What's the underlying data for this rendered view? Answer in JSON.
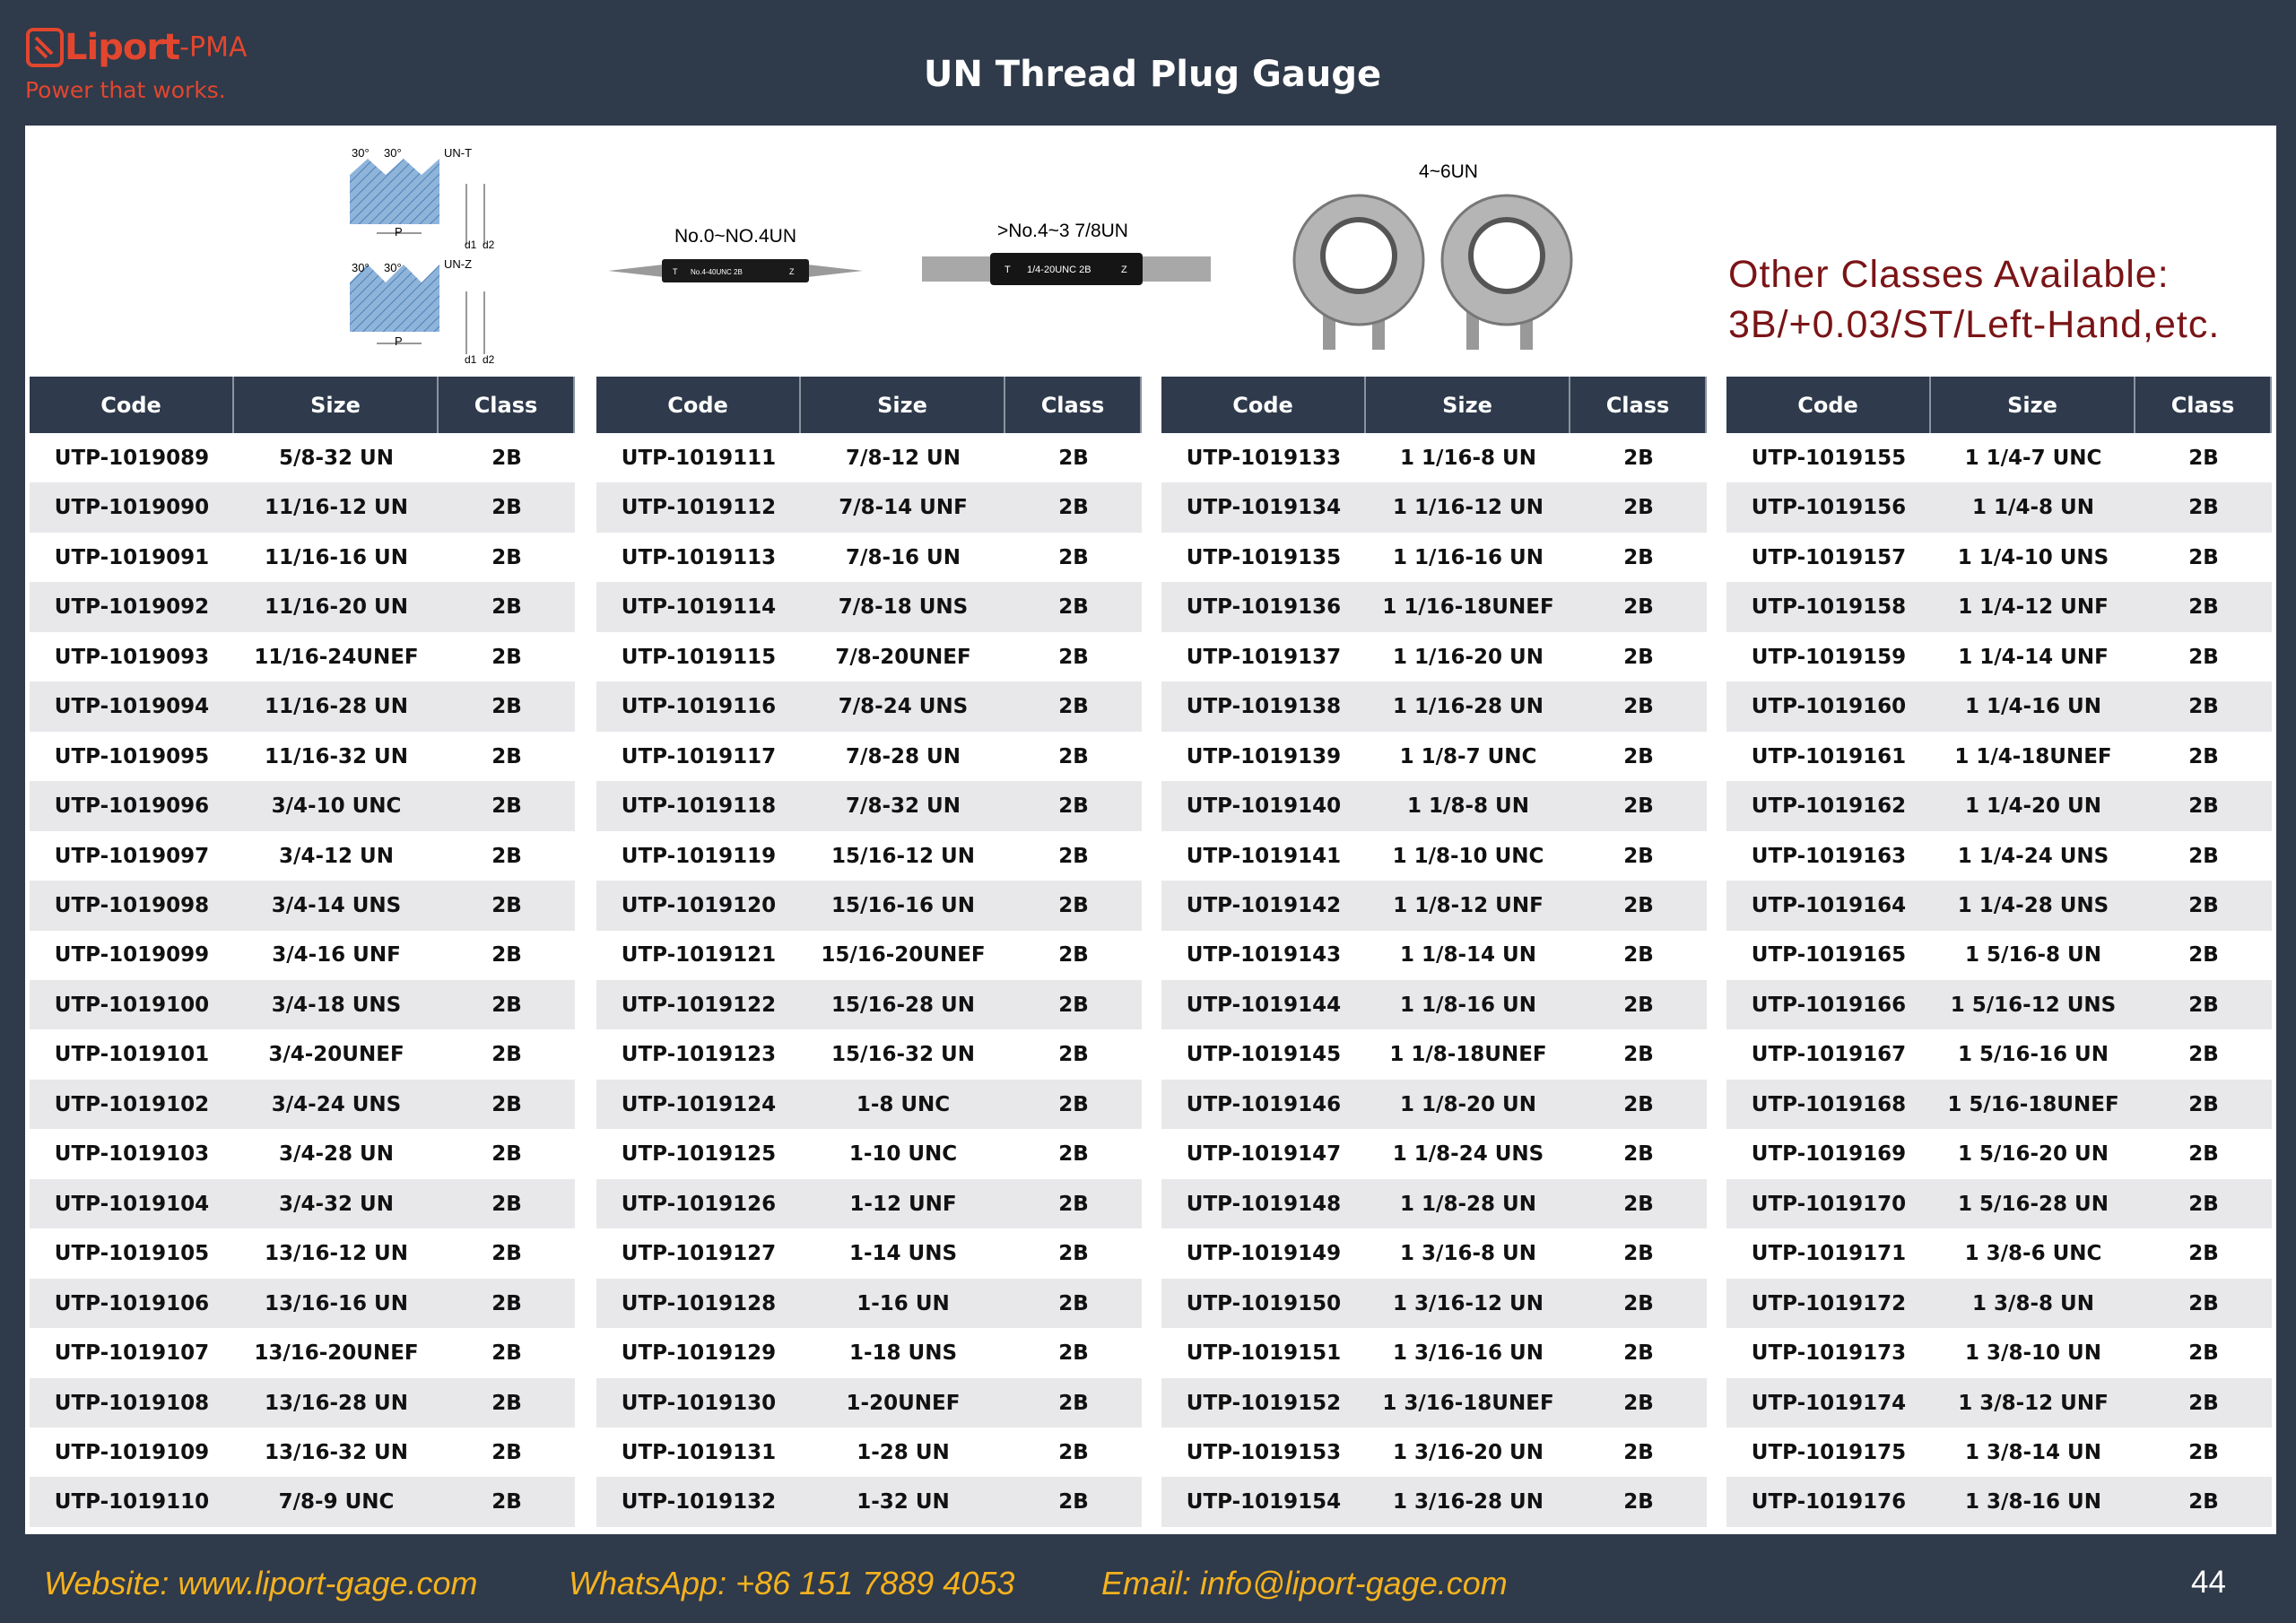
{
  "header": {
    "logo_name": "Liport",
    "logo_suffix": "-PMA",
    "tagline": "Power that works.",
    "title": "UN Thread Plug Gauge"
  },
  "illustrations": {
    "thread_profile_t": {
      "angles": [
        "30°",
        "30°"
      ],
      "label": "UN-T",
      "pitch": "P",
      "minor": "d1",
      "pitch_dia": "d2"
    },
    "thread_profile_z": {
      "angles": [
        "30°",
        "30°"
      ],
      "label": "UN-Z",
      "pitch": "P",
      "minor": "d1",
      "pitch_dia": "d2"
    },
    "small_gauge": {
      "label": "No.0~NO.4UN",
      "go": "T",
      "marking": "No.4-40UNC 2B",
      "nogo": "Z"
    },
    "medium_gauge": {
      "label": ">No.4~3 7/8UN",
      "go": "T",
      "marking": "1/4-20UNC 2B",
      "nogo": "Z"
    },
    "ring_gauge": {
      "label": "4~6UN"
    }
  },
  "notice": {
    "lines": [
      "Other Classes Available:",
      "3B/+0.03/ST/Left-Hand,etc."
    ]
  },
  "tables": [
    {
      "header": [
        "Code",
        "Size",
        "Class"
      ],
      "rows": [
        [
          "UTP-1019089",
          "5/8-32 UN",
          "2B"
        ],
        [
          "UTP-1019090",
          "11/16-12 UN",
          "2B"
        ],
        [
          "UTP-1019091",
          "11/16-16 UN",
          "2B"
        ],
        [
          "UTP-1019092",
          "11/16-20 UN",
          "2B"
        ],
        [
          "UTP-1019093",
          "11/16-24UNEF",
          "2B"
        ],
        [
          "UTP-1019094",
          "11/16-28 UN",
          "2B"
        ],
        [
          "UTP-1019095",
          "11/16-32 UN",
          "2B"
        ],
        [
          "UTP-1019096",
          "3/4-10 UNC",
          "2B"
        ],
        [
          "UTP-1019097",
          "3/4-12 UN",
          "2B"
        ],
        [
          "UTP-1019098",
          "3/4-14 UNS",
          "2B"
        ],
        [
          "UTP-1019099",
          "3/4-16 UNF",
          "2B"
        ],
        [
          "UTP-1019100",
          "3/4-18 UNS",
          "2B"
        ],
        [
          "UTP-1019101",
          "3/4-20UNEF",
          "2B"
        ],
        [
          "UTP-1019102",
          "3/4-24 UNS",
          "2B"
        ],
        [
          "UTP-1019103",
          "3/4-28 UN",
          "2B"
        ],
        [
          "UTP-1019104",
          "3/4-32 UN",
          "2B"
        ],
        [
          "UTP-1019105",
          "13/16-12 UN",
          "2B"
        ],
        [
          "UTP-1019106",
          "13/16-16 UN",
          "2B"
        ],
        [
          "UTP-1019107",
          "13/16-20UNEF",
          "2B"
        ],
        [
          "UTP-1019108",
          "13/16-28 UN",
          "2B"
        ],
        [
          "UTP-1019109",
          "13/16-32 UN",
          "2B"
        ],
        [
          "UTP-1019110",
          "7/8-9 UNC",
          "2B"
        ]
      ]
    },
    {
      "header": [
        "Code",
        "Size",
        "Class"
      ],
      "rows": [
        [
          "UTP-1019111",
          "7/8-12 UN",
          "2B"
        ],
        [
          "UTP-1019112",
          "7/8-14 UNF",
          "2B"
        ],
        [
          "UTP-1019113",
          "7/8-16 UN",
          "2B"
        ],
        [
          "UTP-1019114",
          "7/8-18 UNS",
          "2B"
        ],
        [
          "UTP-1019115",
          "7/8-20UNEF",
          "2B"
        ],
        [
          "UTP-1019116",
          "7/8-24 UNS",
          "2B"
        ],
        [
          "UTP-1019117",
          "7/8-28 UN",
          "2B"
        ],
        [
          "UTP-1019118",
          "7/8-32 UN",
          "2B"
        ],
        [
          "UTP-1019119",
          "15/16-12 UN",
          "2B"
        ],
        [
          "UTP-1019120",
          "15/16-16 UN",
          "2B"
        ],
        [
          "UTP-1019121",
          "15/16-20UNEF",
          "2B"
        ],
        [
          "UTP-1019122",
          "15/16-28 UN",
          "2B"
        ],
        [
          "UTP-1019123",
          "15/16-32 UN",
          "2B"
        ],
        [
          "UTP-1019124",
          "1-8 UNC",
          "2B"
        ],
        [
          "UTP-1019125",
          "1-10 UNC",
          "2B"
        ],
        [
          "UTP-1019126",
          "1-12 UNF",
          "2B"
        ],
        [
          "UTP-1019127",
          "1-14 UNS",
          "2B"
        ],
        [
          "UTP-1019128",
          "1-16 UN",
          "2B"
        ],
        [
          "UTP-1019129",
          "1-18 UNS",
          "2B"
        ],
        [
          "UTP-1019130",
          "1-20UNEF",
          "2B"
        ],
        [
          "UTP-1019131",
          "1-28 UN",
          "2B"
        ],
        [
          "UTP-1019132",
          "1-32 UN",
          "2B"
        ]
      ]
    },
    {
      "header": [
        "Code",
        "Size",
        "Class"
      ],
      "rows": [
        [
          "UTP-1019133",
          "1 1/16-8 UN",
          "2B"
        ],
        [
          "UTP-1019134",
          "1 1/16-12 UN",
          "2B"
        ],
        [
          "UTP-1019135",
          "1 1/16-16 UN",
          "2B"
        ],
        [
          "UTP-1019136",
          "1 1/16-18UNEF",
          "2B"
        ],
        [
          "UTP-1019137",
          "1 1/16-20 UN",
          "2B"
        ],
        [
          "UTP-1019138",
          "1 1/16-28 UN",
          "2B"
        ],
        [
          "UTP-1019139",
          "1 1/8-7 UNC",
          "2B"
        ],
        [
          "UTP-1019140",
          "1 1/8-8 UN",
          "2B"
        ],
        [
          "UTP-1019141",
          "1 1/8-10 UNC",
          "2B"
        ],
        [
          "UTP-1019142",
          "1 1/8-12 UNF",
          "2B"
        ],
        [
          "UTP-1019143",
          "1 1/8-14 UN",
          "2B"
        ],
        [
          "UTP-1019144",
          "1 1/8-16 UN",
          "2B"
        ],
        [
          "UTP-1019145",
          "1 1/8-18UNEF",
          "2B"
        ],
        [
          "UTP-1019146",
          "1 1/8-20 UN",
          "2B"
        ],
        [
          "UTP-1019147",
          "1 1/8-24 UNS",
          "2B"
        ],
        [
          "UTP-1019148",
          "1 1/8-28 UN",
          "2B"
        ],
        [
          "UTP-1019149",
          "1 3/16-8 UN",
          "2B"
        ],
        [
          "UTP-1019150",
          "1 3/16-12 UN",
          "2B"
        ],
        [
          "UTP-1019151",
          "1 3/16-16 UN",
          "2B"
        ],
        [
          "UTP-1019152",
          "1 3/16-18UNEF",
          "2B"
        ],
        [
          "UTP-1019153",
          "1 3/16-20 UN",
          "2B"
        ],
        [
          "UTP-1019154",
          "1 3/16-28 UN",
          "2B"
        ]
      ]
    },
    {
      "header": [
        "Code",
        "Size",
        "Class"
      ],
      "rows": [
        [
          "UTP-1019155",
          "1 1/4-7 UNC",
          "2B"
        ],
        [
          "UTP-1019156",
          "1 1/4-8 UN",
          "2B"
        ],
        [
          "UTP-1019157",
          "1 1/4-10 UNS",
          "2B"
        ],
        [
          "UTP-1019158",
          "1 1/4-12 UNF",
          "2B"
        ],
        [
          "UTP-1019159",
          "1 1/4-14 UNF",
          "2B"
        ],
        [
          "UTP-1019160",
          "1 1/4-16 UN",
          "2B"
        ],
        [
          "UTP-1019161",
          "1 1/4-18UNEF",
          "2B"
        ],
        [
          "UTP-1019162",
          "1 1/4-20 UN",
          "2B"
        ],
        [
          "UTP-1019163",
          "1 1/4-24 UNS",
          "2B"
        ],
        [
          "UTP-1019164",
          "1 1/4-28 UNS",
          "2B"
        ],
        [
          "UTP-1019165",
          "1 5/16-8 UN",
          "2B"
        ],
        [
          "UTP-1019166",
          "1 5/16-12 UNS",
          "2B"
        ],
        [
          "UTP-1019167",
          "1 5/16-16 UN",
          "2B"
        ],
        [
          "UTP-1019168",
          "1 5/16-18UNEF",
          "2B"
        ],
        [
          "UTP-1019169",
          "1 5/16-20 UN",
          "2B"
        ],
        [
          "UTP-1019170",
          "1 5/16-28 UN",
          "2B"
        ],
        [
          "UTP-1019171",
          "1 3/8-6 UNC",
          "2B"
        ],
        [
          "UTP-1019172",
          "1 3/8-8 UN",
          "2B"
        ],
        [
          "UTP-1019173",
          "1 3/8-10 UN",
          "2B"
        ],
        [
          "UTP-1019174",
          "1 3/8-12 UNF",
          "2B"
        ],
        [
          "UTP-1019175",
          "1 3/8-14 UN",
          "2B"
        ],
        [
          "UTP-1019176",
          "1 3/8-16 UN",
          "2B"
        ]
      ]
    }
  ],
  "footer": {
    "website": "Website: www.liport-gage.com",
    "whatsapp": "WhatsApp: +86 151 7889 4053",
    "email": "Email: info@liport-gage.com",
    "page": "44"
  }
}
